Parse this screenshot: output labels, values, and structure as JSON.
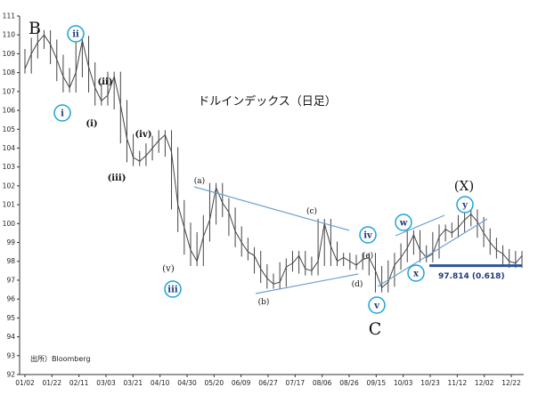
{
  "chart_data": {
    "type": "line",
    "title": "ドルインデックス（日足）",
    "xlabel": "",
    "ylabel": "",
    "ylim": [
      92,
      111
    ],
    "y_ticks": [
      "92",
      "93",
      "94",
      "95",
      "96",
      "97",
      "98",
      "99",
      "100",
      "101",
      "102",
      "103",
      "104",
      "105",
      "106",
      "107",
      "108",
      "109",
      "110",
      "111"
    ],
    "x_tick_labels": [
      "01/02",
      "01/22",
      "02/11",
      "03/03",
      "03/21",
      "04/10",
      "04/30",
      "05/20",
      "06/09",
      "06/27",
      "07/17",
      "08/06",
      "08/26",
      "09/15",
      "10/03",
      "10/23",
      "11/12",
      "12/02",
      "12/22"
    ],
    "grid": false,
    "source": "出所）Bloomberg",
    "series": [
      {
        "values": [
          108.2,
          109.0,
          109.6,
          110.0,
          109.5,
          108.7,
          107.8,
          107.2,
          108.0,
          109.7,
          108.3,
          107.2,
          106.5,
          106.8,
          107.8,
          106.3,
          104.5,
          103.5,
          103.3,
          103.6,
          104.0,
          104.4,
          104.7,
          103.8,
          101.0,
          99.8,
          98.6,
          98.0,
          99.3,
          100.2,
          101.9,
          101.1,
          100.6,
          99.6,
          99.0,
          98.5,
          98.3,
          97.6,
          97.1,
          96.8,
          96.9,
          97.7,
          97.9,
          98.3,
          97.6,
          97.5,
          98.0,
          100.0,
          98.8,
          98.0,
          98.2,
          98.0,
          97.8,
          98.1,
          98.2,
          97.5,
          96.6,
          96.9,
          97.8,
          98.2,
          98.7,
          99.4,
          98.6,
          98.2,
          98.4,
          99.3,
          99.7,
          99.5,
          99.8,
          100.2,
          100.5,
          100.1,
          99.5,
          99.0,
          98.6,
          98.4,
          98.0,
          97.9,
          98.3
        ]
      }
    ],
    "wave_labels": {
      "B": "B",
      "C": "C",
      "X": "(X)",
      "i": "i",
      "ii": "ii",
      "iii": "iii",
      "iv": "iv",
      "v": "v",
      "w": "w",
      "x": "x",
      "y": "y",
      "paren_i": "(i)",
      "paren_ii": "(ii)",
      "paren_iii": "(iii)",
      "paren_iv": "(iv)",
      "paren_v": "(v)",
      "a": "(a)",
      "b": "(b)",
      "c": "(c)",
      "d": "(d)",
      "e": "(e)"
    },
    "annotations": {
      "retracement_label": "97.814 (0.618)",
      "retracement_value": 97.814
    },
    "colors": {
      "price": "#444444",
      "trendline": "#6f9fd0",
      "circle": "#1aa3d9",
      "circle_text": "#1f3a7a",
      "support_line": "#2f5597",
      "annotation_text": "#1f3a7a"
    }
  }
}
